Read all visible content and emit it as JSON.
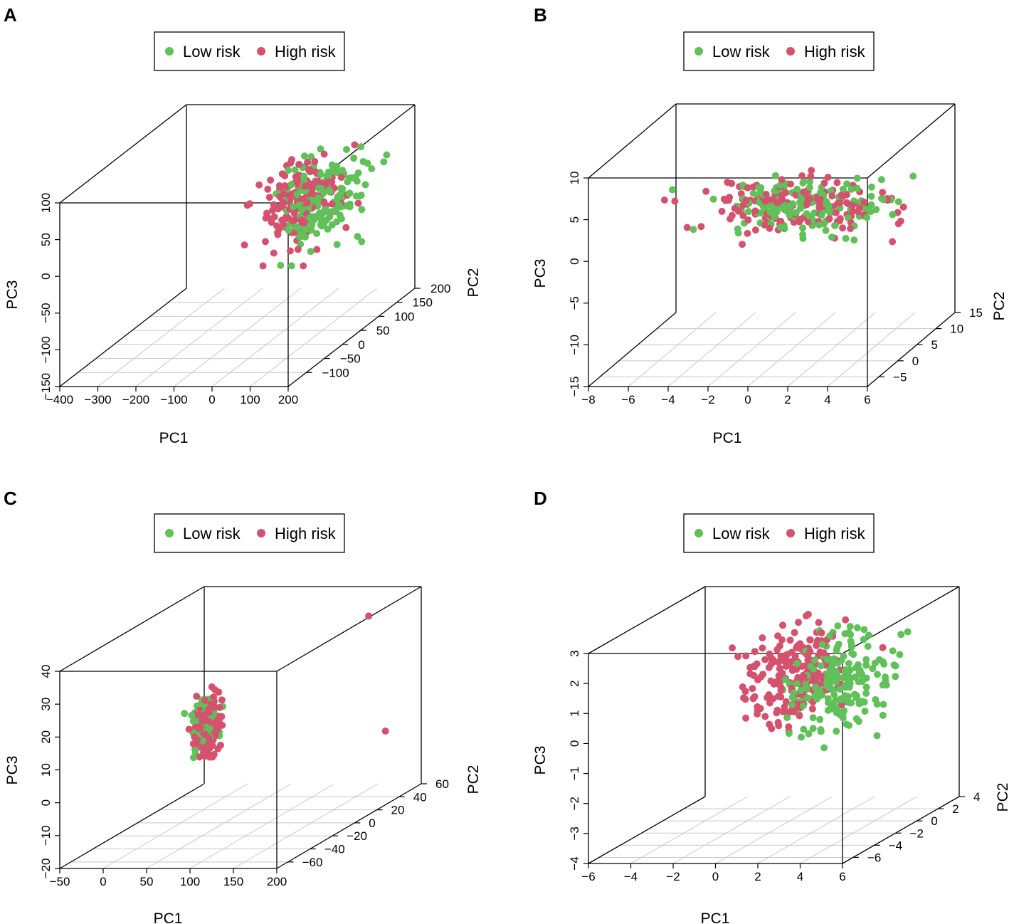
{
  "colors": {
    "low": "#61c05a",
    "high": "#d4526e",
    "grid": "#c8c8c8",
    "axis": "#000000"
  },
  "legend_entries": [
    "Low risk",
    "High risk"
  ],
  "chart_data": [
    {
      "type": "scatter3d",
      "label": "A",
      "axes": {
        "x": "PC1",
        "y": "PC2",
        "z": "PC3"
      },
      "xticks": [
        "−400",
        "−300",
        "−200",
        "−100",
        "0",
        "100",
        "200"
      ],
      "xrange": [
        -400,
        200
      ],
      "yticks": [
        "−100",
        "−50",
        "0",
        "50",
        "100",
        "150",
        "200"
      ],
      "yrange": [
        -150,
        200
      ],
      "zticks": [
        "−150",
        "−100",
        "−50",
        "0",
        "50",
        "100"
      ],
      "zrange": [
        -150,
        100
      ],
      "series": [
        {
          "name": "Low risk",
          "n": 170,
          "cx": 110,
          "cy": 40,
          "cz": 35,
          "sx": 40,
          "sy": 40,
          "sz": 30,
          "seed": 11
        },
        {
          "name": "High risk",
          "n": 170,
          "cx": 60,
          "cy": 30,
          "cz": 35,
          "sx": 40,
          "sy": 35,
          "sz": 30,
          "seed": 12
        }
      ]
    },
    {
      "type": "scatter3d",
      "label": "B",
      "axes": {
        "x": "PC1",
        "y": "PC2",
        "z": "PC3"
      },
      "xticks": [
        "−8",
        "−6",
        "−4",
        "−2",
        "0",
        "2",
        "4",
        "6"
      ],
      "xrange": [
        -8,
        6
      ],
      "yticks": [
        "−5",
        "0",
        "5",
        "10",
        "15"
      ],
      "yrange": [
        -8,
        15
      ],
      "zticks": [
        "−15",
        "−10",
        "−5",
        "0",
        "5",
        "10"
      ],
      "zrange": [
        -15,
        10
      ],
      "series": [
        {
          "name": "Low risk",
          "n": 160,
          "cx": 0.8,
          "cy": 3,
          "cz": 2.5,
          "sx": 2.2,
          "sy": 1.5,
          "sz": 1.5,
          "seed": 21
        },
        {
          "name": "High risk",
          "n": 160,
          "cx": 0.3,
          "cy": 3,
          "cz": 2.5,
          "sx": 2.2,
          "sy": 1.5,
          "sz": 1.5,
          "seed": 22
        }
      ]
    },
    {
      "type": "scatter3d",
      "label": "C",
      "axes": {
        "x": "PC1",
        "y": "PC2",
        "z": "PC3"
      },
      "xticks": [
        "−50",
        "0",
        "50",
        "100",
        "150",
        "200"
      ],
      "xrange": [
        -50,
        200
      ],
      "yticks": [
        "−60",
        "−40",
        "−20",
        "0",
        "20",
        "40",
        "60"
      ],
      "yrange": [
        -70,
        60
      ],
      "zticks": [
        "−20",
        "−10",
        "0",
        "10",
        "20",
        "30",
        "40"
      ],
      "zrange": [
        -20,
        40
      ],
      "series": [
        {
          "name": "Low risk",
          "n": 130,
          "cx": 27,
          "cy": -2,
          "cz": 10,
          "sx": 5,
          "sy": 5,
          "sz": 4,
          "seed": 31
        },
        {
          "name": "High risk",
          "n": 130,
          "cx": 33,
          "cy": -2,
          "cz": 9,
          "sx": 5,
          "sy": 5,
          "sz": 5,
          "seed": 32
        }
      ]
    },
    {
      "type": "scatter3d",
      "label": "D",
      "axes": {
        "x": "PC1",
        "y": "PC2",
        "z": "PC3"
      },
      "xticks": [
        "−6",
        "−4",
        "−2",
        "0",
        "2",
        "4",
        "6"
      ],
      "xrange": [
        -6,
        6
      ],
      "yticks": [
        "−6",
        "−4",
        "−2",
        "0",
        "2",
        "4"
      ],
      "yrange": [
        -7,
        4
      ],
      "zticks": [
        "−4",
        "−3",
        "−2",
        "−1",
        "0",
        "1",
        "2",
        "3"
      ],
      "zrange": [
        -4,
        3
      ],
      "series": [
        {
          "name": "Low risk",
          "n": 200,
          "cx": 3.2,
          "cy": -1.5,
          "cz": 0.9,
          "sx": 1.1,
          "sy": 1.3,
          "sz": 0.8,
          "seed": 41
        },
        {
          "name": "High risk",
          "n": 200,
          "cx": 1.0,
          "cy": -1.5,
          "cz": 1.2,
          "sx": 1.0,
          "sy": 1.2,
          "sz": 0.8,
          "seed": 42
        }
      ]
    }
  ]
}
